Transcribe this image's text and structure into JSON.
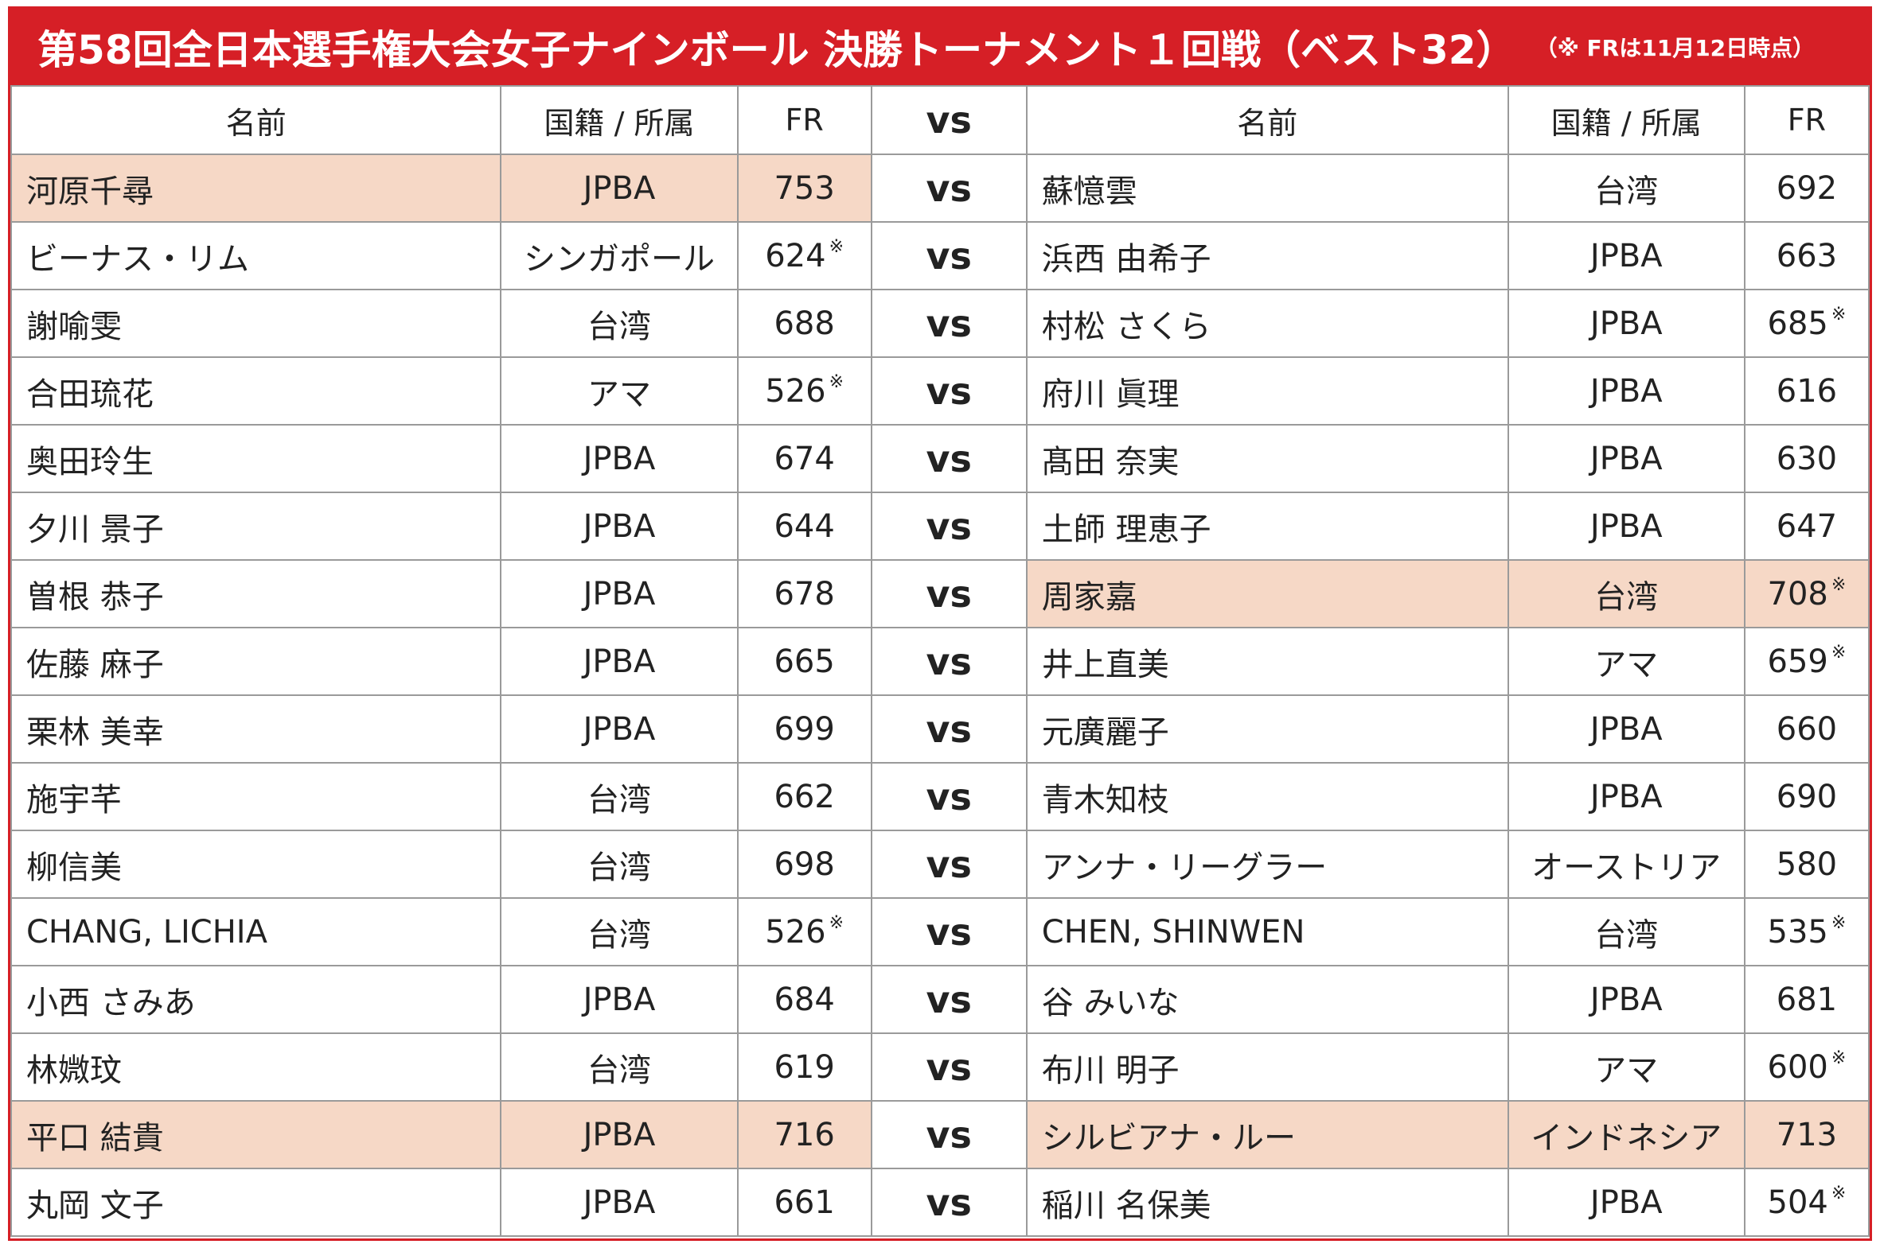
{
  "title": "第58回全日本選手権大会女子ナインボール 決勝トーナメント１回戦（ベスト32）",
  "note": "（※ FRは11月12日時点）",
  "headers": {
    "name": "名前",
    "affiliation": "国籍 / 所属",
    "fr": "FR",
    "vs": "vs"
  },
  "note_mark": "※",
  "highlight_color": "#f6d8c6",
  "accent_color": "#d61f26",
  "matches": [
    {
      "left": {
        "name": "河原千尋",
        "aff": "JPBA",
        "fr": "753",
        "note": false,
        "hl": true
      },
      "vs": "vs",
      "right": {
        "name": "蘇憶雲",
        "aff": "台湾",
        "fr": "692",
        "note": false,
        "hl": false
      }
    },
    {
      "left": {
        "name": "ビーナス・リム",
        "aff": "シンガポール",
        "fr": "624",
        "note": true,
        "hl": false
      },
      "vs": "vs",
      "right": {
        "name": "浜西 由希子",
        "aff": "JPBA",
        "fr": "663",
        "note": false,
        "hl": false
      }
    },
    {
      "left": {
        "name": "謝喻雯",
        "aff": "台湾",
        "fr": "688",
        "note": false,
        "hl": false
      },
      "vs": "vs",
      "right": {
        "name": "村松 さくら",
        "aff": "JPBA",
        "fr": "685",
        "note": true,
        "hl": false
      }
    },
    {
      "left": {
        "name": "合田琉花",
        "aff": "アマ",
        "fr": "526",
        "note": true,
        "hl": false
      },
      "vs": "vs",
      "right": {
        "name": "府川 眞理",
        "aff": "JPBA",
        "fr": "616",
        "note": false,
        "hl": false
      }
    },
    {
      "left": {
        "name": "奥田玲生",
        "aff": "JPBA",
        "fr": "674",
        "note": false,
        "hl": false
      },
      "vs": "vs",
      "right": {
        "name": "髙田 奈実",
        "aff": "JPBA",
        "fr": "630",
        "note": false,
        "hl": false
      }
    },
    {
      "left": {
        "name": "夕川 景子",
        "aff": "JPBA",
        "fr": "644",
        "note": false,
        "hl": false
      },
      "vs": "vs",
      "right": {
        "name": "土師 理恵子",
        "aff": "JPBA",
        "fr": "647",
        "note": false,
        "hl": false
      }
    },
    {
      "left": {
        "name": "曽根 恭子",
        "aff": "JPBA",
        "fr": "678",
        "note": false,
        "hl": false
      },
      "vs": "vs",
      "right": {
        "name": "周家嘉",
        "aff": "台湾",
        "fr": "708",
        "note": true,
        "hl": true
      }
    },
    {
      "left": {
        "name": "佐藤 麻子",
        "aff": "JPBA",
        "fr": "665",
        "note": false,
        "hl": false
      },
      "vs": "vs",
      "right": {
        "name": "井上直美",
        "aff": "アマ",
        "fr": "659",
        "note": true,
        "hl": false
      }
    },
    {
      "left": {
        "name": "栗林 美幸",
        "aff": "JPBA",
        "fr": "699",
        "note": false,
        "hl": false
      },
      "vs": "vs",
      "right": {
        "name": "元廣麗子",
        "aff": "JPBA",
        "fr": "660",
        "note": false,
        "hl": false
      }
    },
    {
      "left": {
        "name": "施宇芊",
        "aff": "台湾",
        "fr": "662",
        "note": false,
        "hl": false
      },
      "vs": "vs",
      "right": {
        "name": "青木知枝",
        "aff": "JPBA",
        "fr": "690",
        "note": false,
        "hl": false
      }
    },
    {
      "left": {
        "name": "柳信美",
        "aff": "台湾",
        "fr": "698",
        "note": false,
        "hl": false
      },
      "vs": "vs",
      "right": {
        "name": "アンナ・リーグラー",
        "aff": "オーストリア",
        "fr": "580",
        "note": false,
        "hl": false
      }
    },
    {
      "left": {
        "name": "CHANG, LICHIA",
        "aff": "台湾",
        "fr": "526",
        "note": true,
        "hl": false
      },
      "vs": "vs",
      "right": {
        "name": "CHEN, SHINWEN",
        "aff": "台湾",
        "fr": "535",
        "note": true,
        "hl": false
      }
    },
    {
      "left": {
        "name": "小西 さみあ",
        "aff": "JPBA",
        "fr": "684",
        "note": false,
        "hl": false
      },
      "vs": "vs",
      "right": {
        "name": "谷 みいな",
        "aff": "JPBA",
        "fr": "681",
        "note": false,
        "hl": false
      }
    },
    {
      "left": {
        "name": "林媺玟",
        "aff": "台湾",
        "fr": "619",
        "note": false,
        "hl": false
      },
      "vs": "vs",
      "right": {
        "name": "布川 明子",
        "aff": "アマ",
        "fr": "600",
        "note": true,
        "hl": false
      }
    },
    {
      "left": {
        "name": "平口 結貴",
        "aff": "JPBA",
        "fr": "716",
        "note": false,
        "hl": true
      },
      "vs": "vs",
      "right": {
        "name": "シルビアナ・ルー",
        "aff": "インドネシア",
        "fr": "713",
        "note": false,
        "hl": true
      }
    },
    {
      "left": {
        "name": "丸岡 文子",
        "aff": "JPBA",
        "fr": "661",
        "note": false,
        "hl": false
      },
      "vs": "vs",
      "right": {
        "name": "稲川 名保美",
        "aff": "JPBA",
        "fr": "504",
        "note": true,
        "hl": false
      }
    }
  ]
}
